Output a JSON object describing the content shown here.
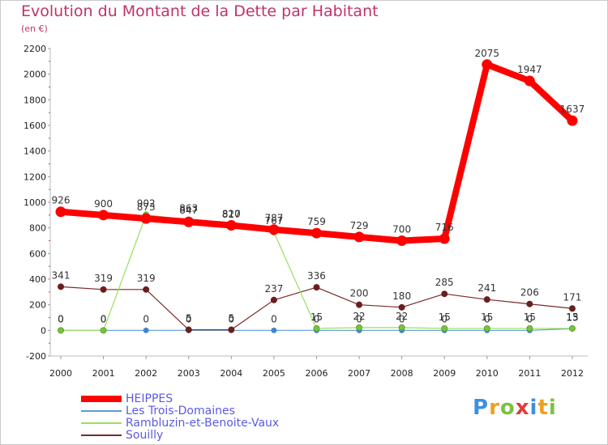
{
  "title": "Evolution du Montant de la Dette par Habitant",
  "unit": "(en €)",
  "logo": {
    "letters": [
      {
        "ch": "P",
        "color": "#3f8fe0"
      },
      {
        "ch": "r",
        "color": "#f0a020"
      },
      {
        "ch": "o",
        "color": "#7cc240"
      },
      {
        "ch": "x",
        "color": "#e23c3c"
      },
      {
        "ch": "i",
        "color": "#3f8fe0"
      },
      {
        "ch": "t",
        "color": "#f0a020"
      },
      {
        "ch": "i",
        "color": "#7cc240"
      }
    ]
  },
  "chart_data": {
    "type": "line",
    "title": "Evolution du Montant de la Dette par Habitant",
    "ylabel": "(en €)",
    "xlabel": "",
    "x": [
      "2000",
      "2001",
      "2002",
      "2003",
      "2004",
      "2005",
      "2006",
      "2007",
      "2008",
      "2009",
      "2010",
      "2011",
      "2012"
    ],
    "ylim": [
      -200,
      2200
    ],
    "yticks": [
      -200,
      0,
      200,
      400,
      600,
      800,
      1000,
      1200,
      1400,
      1600,
      1800,
      2000,
      2200
    ],
    "grid": false,
    "legend_position": "bottom-left",
    "series": [
      {
        "name": "HEIPPES",
        "color": "#ff0000",
        "values": [
          926,
          900,
          873,
          847,
          820,
          787,
          759,
          729,
          700,
          716,
          2075,
          1947,
          1637
        ]
      },
      {
        "name": "Les Trois-Domaines",
        "color": "#5b9bd5",
        "values": [
          0,
          0,
          0,
          0,
          0,
          0,
          0,
          0,
          0,
          0,
          0,
          0,
          13
        ]
      },
      {
        "name": "Rambluzin-et-Benoite-Vaux",
        "color": "#99e05b",
        "values": [
          0,
          0,
          902,
          863,
          817,
          767,
          15,
          22,
          22,
          15,
          15,
          15,
          15
        ]
      },
      {
        "name": "Souilly",
        "color": "#7a2a2a",
        "values": [
          341,
          319,
          319,
          5,
          5,
          237,
          336,
          200,
          180,
          285,
          241,
          206,
          171
        ]
      }
    ]
  }
}
